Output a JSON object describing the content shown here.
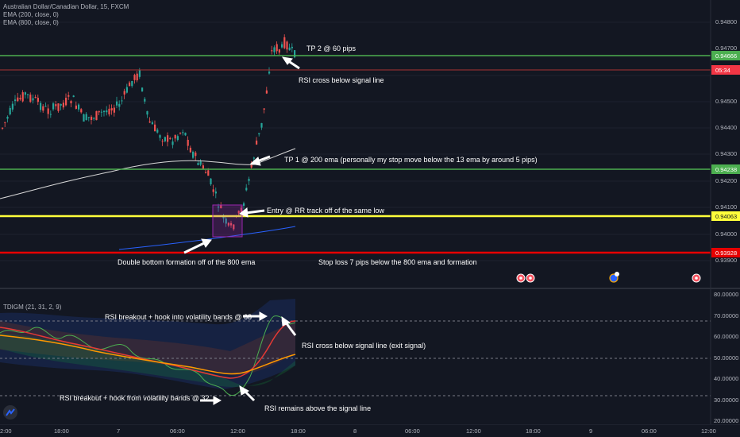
{
  "header": {
    "symbol_line": "Australian Dollar/Canadian Dollar, 15, FXCM",
    "ema1": "EMA (200, close, 0)",
    "ema2": "EMA (800, close, 0)"
  },
  "indicator": {
    "title": "TDIGM (21, 31, 2, 9)"
  },
  "colors": {
    "background": "#131722",
    "up_candle": "#26a69a",
    "down_candle": "#ef5350",
    "green_line": "#4caf50",
    "yellow_line": "#ffff3b",
    "red_line": "#e60000",
    "ema200": "#d9d9d9",
    "ema800": "#2962ff"
  },
  "price_axis": {
    "labels": [
      "0.94800",
      "0.94700",
      "0.94500",
      "0.94400",
      "0.94300",
      "0.94200",
      "0.94100",
      "0.94000",
      "0.93900"
    ],
    "tags": [
      {
        "label": "0.94666",
        "kind": "green"
      },
      {
        "label": "05:34",
        "kind": "red"
      },
      {
        "label": "0.94238",
        "kind": "green"
      },
      {
        "label": "0.94063",
        "kind": "yellow"
      },
      {
        "label": "0.93928",
        "kind": "redline"
      }
    ]
  },
  "rsi_axis": {
    "labels": [
      "80.00000",
      "70.00000",
      "60.00000",
      "50.00000",
      "40.00000",
      "30.00000",
      "20.00000"
    ]
  },
  "time_axis": {
    "labels": [
      "2:00",
      "18:00",
      "7",
      "06:00",
      "12:00",
      "18:00",
      "8",
      "06:00",
      "12:00",
      "18:00",
      "9",
      "06:00",
      "12:00"
    ]
  },
  "annotations": {
    "tp2": "TP 2 @ 60 pips",
    "rsi_cross": "RSI cross below signal line",
    "tp1": "TP 1 @ 200 ema (personally my stop move below the 13 ema by around 5 pips)",
    "entry": "Entry @ RR track off of the same low",
    "double_bottom": "Double bottom formation off of the 800 ema",
    "stop_loss": "Stop loss 7 pips below the 800 ema and formation",
    "rsi_breakout_68": "RSI breakout + hook into volatility bands @ 68",
    "rsi_exit": "RSI cross below signal line (exit signal)",
    "rsi_breakout_32": "RSI breakout + hook from volatility bands @ 32",
    "rsi_above": "RSI remains above the signal line"
  },
  "event_icons": [
    "event-flag-icon",
    "event-flag-icon",
    "event-earnings-icon",
    "event-flag-icon"
  ]
}
